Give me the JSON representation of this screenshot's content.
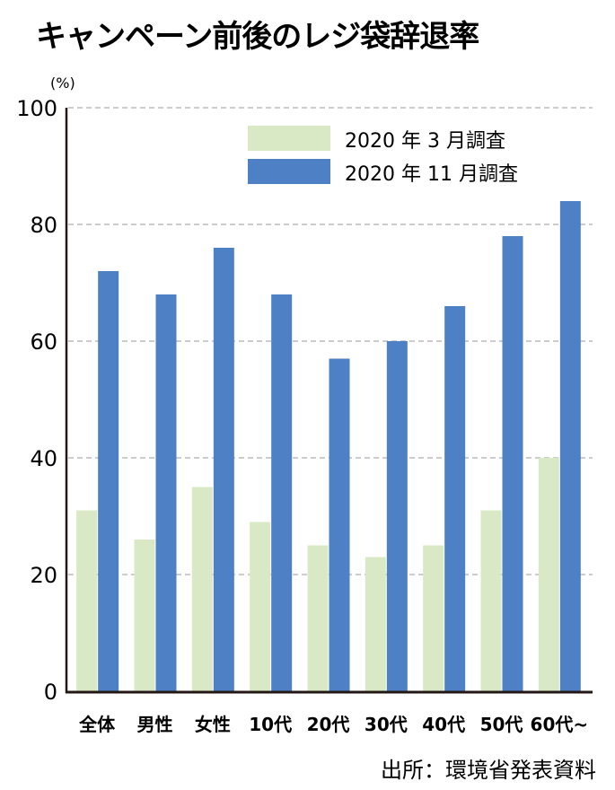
{
  "chart_data": {
    "type": "bar",
    "title": "キャンペーン前後のレジ袋辞退率",
    "y_unit": "(%)",
    "ylim": [
      0,
      100
    ],
    "yticks": [
      0,
      20,
      40,
      60,
      80,
      100
    ],
    "grid": true,
    "legend_position": "top-right",
    "categories": [
      "全体",
      "男性",
      "女性",
      "10代",
      "20代",
      "30代",
      "40代",
      "50代",
      "60代~"
    ],
    "series": [
      {
        "name": "2020 年 3 月調査",
        "color": "#d9e9c5",
        "values": [
          31,
          26,
          35,
          29,
          25,
          23,
          25,
          31,
          40
        ]
      },
      {
        "name": "2020 年 11 月調査",
        "color": "#4d80c4",
        "values": [
          72,
          68,
          76,
          68,
          57,
          60,
          66,
          78,
          84
        ]
      }
    ],
    "source": "出所：環境省発表資料"
  }
}
